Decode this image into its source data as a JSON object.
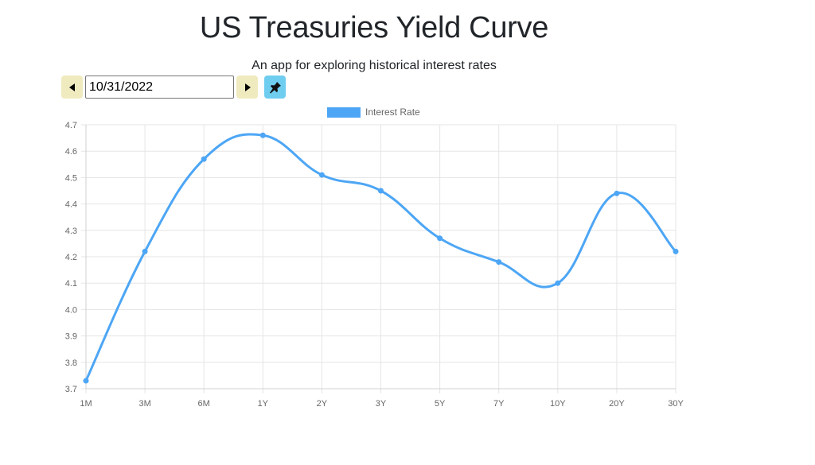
{
  "header": {
    "title": "US Treasuries Yield Curve",
    "subtitle": "An app for exploring historical interest rates"
  },
  "controls": {
    "prev_icon": "caret-left-icon",
    "date_value": "10/31/2022",
    "next_icon": "caret-right-icon",
    "pin_icon": "pin-icon"
  },
  "colors": {
    "line": "#4da6f5",
    "nav_button": "#f0ebbf",
    "pin_button": "#6fcdf0",
    "grid": "#e5e5e5"
  },
  "chart_data": {
    "type": "line",
    "title": "",
    "categories": [
      "1M",
      "3M",
      "6M",
      "1Y",
      "2Y",
      "3Y",
      "5Y",
      "7Y",
      "10Y",
      "20Y",
      "30Y"
    ],
    "series": [
      {
        "name": "Interest Rate",
        "values": [
          3.73,
          4.22,
          4.57,
          4.66,
          4.51,
          4.45,
          4.27,
          4.18,
          4.1,
          4.44,
          4.22
        ]
      }
    ],
    "yticks": [
      "3.7",
      "3.8",
      "3.9",
      "4.0",
      "4.1",
      "4.2",
      "4.3",
      "4.4",
      "4.5",
      "4.6",
      "4.7"
    ],
    "ylim": [
      3.7,
      4.7
    ],
    "xlabel": "",
    "ylabel": "",
    "grid": true,
    "legend_position": "top"
  }
}
